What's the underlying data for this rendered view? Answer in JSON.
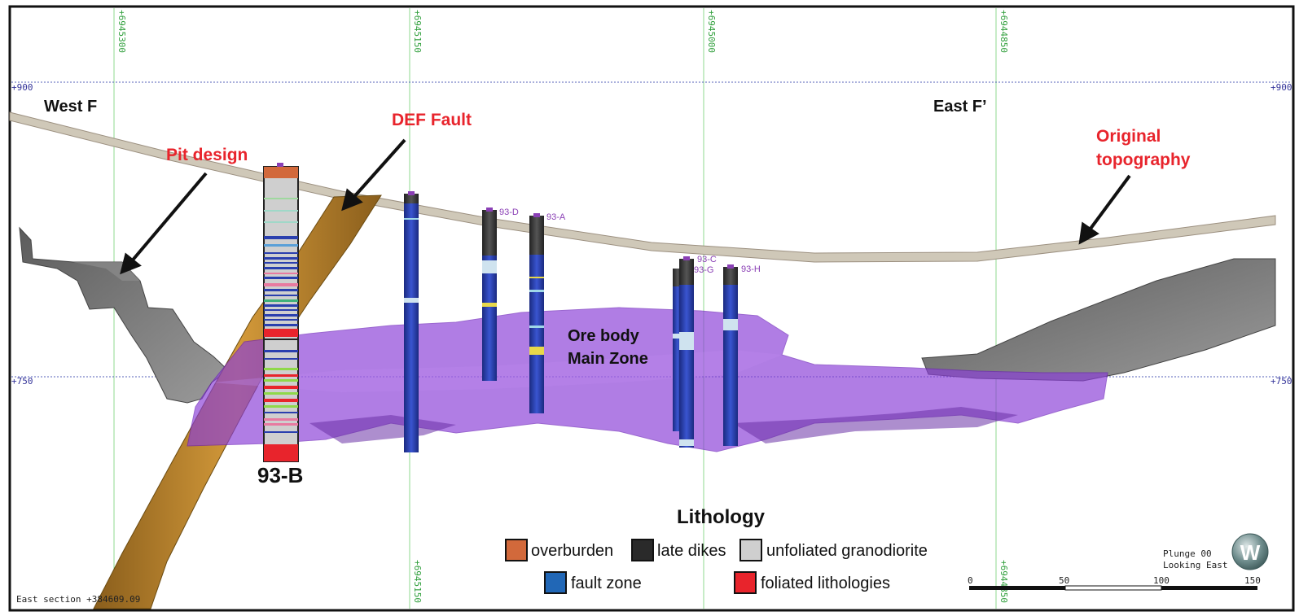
{
  "northings": [
    "+6945300",
    "+6945150",
    "+6945000",
    "+6944850"
  ],
  "elevations": {
    "upper": "+900",
    "lower": "+750"
  },
  "section_labels": {
    "west": "West F",
    "east": "East F’"
  },
  "callouts": {
    "pit_design": "Pit design",
    "def_fault": "DEF Fault",
    "original_topography_line1": "Original",
    "original_topography_line2": "topography"
  },
  "orebody": {
    "line1": "Ore body",
    "line2": "Main Zone"
  },
  "drillholes": {
    "hole_b": "93-B",
    "hole_d": "93-D",
    "hole_a": "93-A",
    "hole_c": "93-C",
    "hole_g": "93-G",
    "hole_h": "93-H"
  },
  "legend": {
    "title": "Lithology",
    "items": [
      {
        "label": "overburden",
        "color": "#d2693b"
      },
      {
        "label": "late dikes",
        "color": "#2a2a2a"
      },
      {
        "label": "unfoliated granodiorite",
        "color": "#cfcfcf"
      },
      {
        "label": "fault zone",
        "color": "#2167b6"
      },
      {
        "label": "foliated lithologies",
        "color": "#e8242c"
      }
    ]
  },
  "view": {
    "plunge": "Plunge 00",
    "looking": "Looking East",
    "compass": "W"
  },
  "scale": {
    "ticks": [
      "0",
      "50",
      "100",
      "150"
    ]
  },
  "section_text": "East section +384609.09",
  "colors": {
    "orebody": "#8b3fd9",
    "fault": "#b07d2c",
    "pit": "#7a7a7a",
    "topography": "#cfc8b8",
    "drillhole_blue": "#2d3fb0",
    "grid_green": "#7fcf7f",
    "grid_blue": "#4a55b0"
  }
}
